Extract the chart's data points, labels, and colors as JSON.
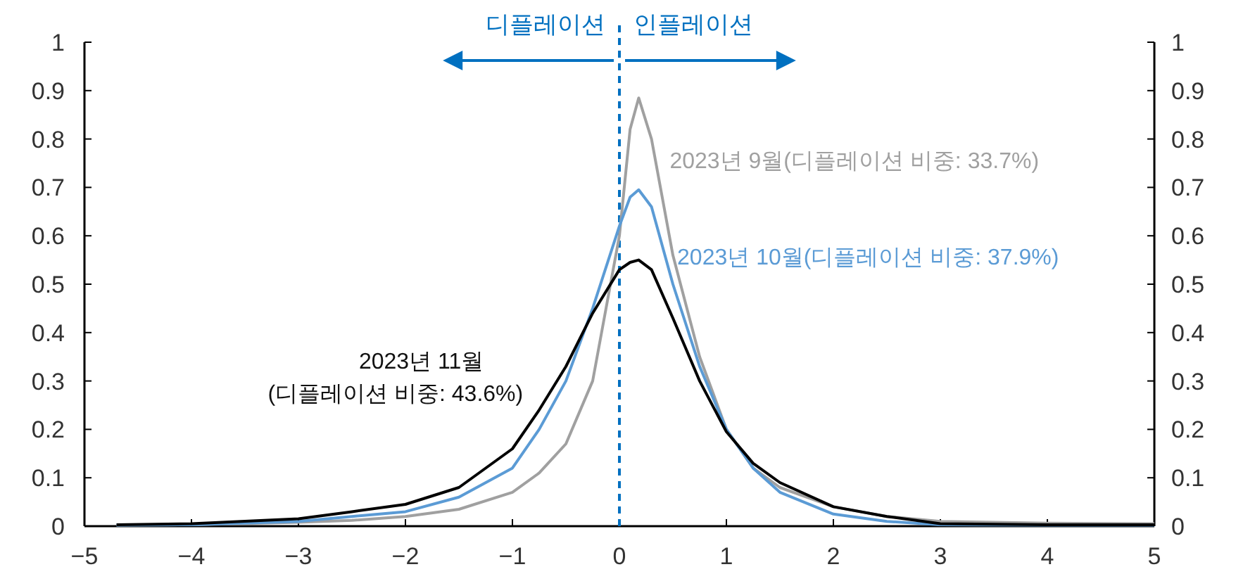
{
  "chart_data": {
    "type": "line",
    "x": [
      -4.7,
      -4,
      -3,
      -2.5,
      -2,
      -1.5,
      -1,
      -0.75,
      -0.5,
      -0.25,
      0,
      0.1,
      0.18,
      0.3,
      0.5,
      0.75,
      1,
      1.25,
      1.5,
      2,
      2.5,
      3,
      4,
      5
    ],
    "series": [
      {
        "name": "2023년 9월(디플레이션 비중: 33.7%)",
        "color": "#a0a0a0",
        "values": [
          0.002,
          0.003,
          0.008,
          0.012,
          0.02,
          0.035,
          0.07,
          0.11,
          0.17,
          0.3,
          0.6,
          0.82,
          0.885,
          0.8,
          0.56,
          0.35,
          0.2,
          0.12,
          0.08,
          0.04,
          0.02,
          0.01,
          0.006,
          0.005
        ]
      },
      {
        "name": "2023년 10월(디플레이션 비중: 37.9%)",
        "color": "#5b9bd5",
        "values": [
          0.002,
          0.003,
          0.01,
          0.02,
          0.03,
          0.06,
          0.12,
          0.2,
          0.3,
          0.45,
          0.62,
          0.68,
          0.695,
          0.66,
          0.5,
          0.33,
          0.2,
          0.12,
          0.07,
          0.025,
          0.01,
          0.003,
          0.002,
          0.002
        ]
      },
      {
        "name": "2023년 11월 (디플레이션 비중: 43.6%)",
        "color": "#000000",
        "values": [
          0.003,
          0.005,
          0.015,
          0.03,
          0.045,
          0.08,
          0.16,
          0.24,
          0.33,
          0.44,
          0.53,
          0.545,
          0.55,
          0.53,
          0.43,
          0.3,
          0.195,
          0.13,
          0.09,
          0.04,
          0.02,
          0.005,
          0.003,
          0.003
        ]
      }
    ],
    "xlim": [
      -5,
      5
    ],
    "xticks": [
      {
        "value": -5,
        "label": "−5"
      },
      {
        "value": -4,
        "label": "−4"
      },
      {
        "value": -3,
        "label": "−3"
      },
      {
        "value": -2,
        "label": "−2"
      },
      {
        "value": -1,
        "label": "−1"
      },
      0,
      1,
      2,
      3,
      4,
      5
    ],
    "ylim": [
      0,
      1
    ],
    "yticks": [
      0,
      0.1,
      0.2,
      0.3,
      0.4,
      0.5,
      0.6,
      0.7,
      0.8,
      0.9,
      1
    ],
    "y2lim": [
      0,
      1
    ],
    "y2ticks": [
      0,
      0.1,
      0.2,
      0.3,
      0.4,
      0.5,
      0.6,
      0.7,
      0.8,
      0.9,
      1
    ],
    "ref_lines": [
      {
        "axis": "x",
        "value": 0,
        "color": "#0070c0",
        "line_style": "dashed"
      }
    ],
    "annotations": [
      "디플레이션",
      "인플레이션"
    ],
    "grid": false,
    "marker": "none",
    "line_style": "solid"
  }
}
